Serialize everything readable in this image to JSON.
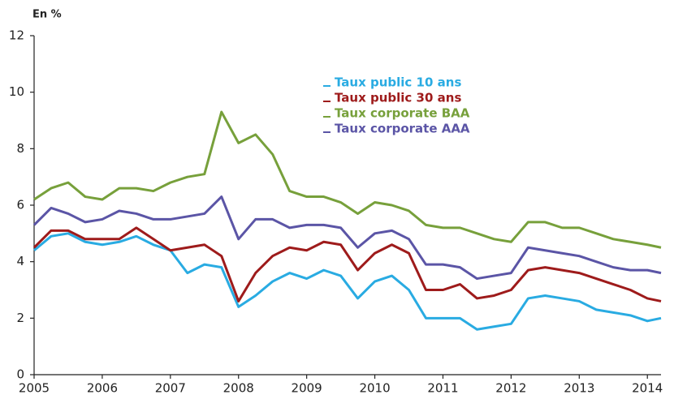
{
  "chart_data": {
    "type": "line",
    "y_label": "En %",
    "x": [
      2005,
      2005.25,
      2005.5,
      2005.75,
      2006,
      2006.25,
      2006.5,
      2006.75,
      2007,
      2007.25,
      2007.5,
      2007.75,
      2008,
      2008.25,
      2008.5,
      2008.75,
      2009,
      2009.25,
      2009.5,
      2009.75,
      2010,
      2010.25,
      2010.5,
      2010.75,
      2011,
      2011.25,
      2011.5,
      2011.75,
      2012,
      2012.25,
      2012.5,
      2012.75,
      2013,
      2013.25,
      2013.5,
      2013.75,
      2014,
      2014.2
    ],
    "series": [
      {
        "name": "Taux public 10 ans",
        "color": "#29abe2",
        "values": [
          4.4,
          4.9,
          5.0,
          4.7,
          4.6,
          4.7,
          4.9,
          4.6,
          4.4,
          3.6,
          3.9,
          3.8,
          2.4,
          2.8,
          3.3,
          3.6,
          3.4,
          3.7,
          3.5,
          2.7,
          3.3,
          3.5,
          3.0,
          2.0,
          2.0,
          2.0,
          1.6,
          1.7,
          1.8,
          2.7,
          2.8,
          2.7,
          2.6,
          2.3,
          2.2,
          2.1,
          1.9,
          2.0
        ]
      },
      {
        "name": "Taux public 30 ans",
        "color": "#9e1b1b",
        "values": [
          4.5,
          5.1,
          5.1,
          4.8,
          4.8,
          4.8,
          5.2,
          4.8,
          4.4,
          4.5,
          4.6,
          4.2,
          2.6,
          3.6,
          4.2,
          4.5,
          4.4,
          4.7,
          4.6,
          3.7,
          4.3,
          4.6,
          4.3,
          3.0,
          3.0,
          3.2,
          2.7,
          2.8,
          3.0,
          3.7,
          3.8,
          3.7,
          3.6,
          3.4,
          3.2,
          3.0,
          2.7,
          2.6
        ]
      },
      {
        "name": "Taux corporate BAA",
        "color": "#77a03b",
        "values": [
          6.2,
          6.6,
          6.8,
          6.3,
          6.2,
          6.6,
          6.6,
          6.5,
          6.8,
          7.0,
          7.1,
          9.3,
          8.2,
          8.5,
          7.8,
          6.5,
          6.3,
          6.3,
          6.1,
          5.7,
          6.1,
          6.0,
          5.8,
          5.3,
          5.2,
          5.2,
          5.0,
          4.8,
          4.7,
          5.4,
          5.4,
          5.2,
          5.2,
          5.0,
          4.8,
          4.7,
          4.6,
          4.5
        ]
      },
      {
        "name": "Taux corporate AAA",
        "color": "#5b55a6",
        "values": [
          5.3,
          5.9,
          5.7,
          5.4,
          5.5,
          5.8,
          5.7,
          5.5,
          5.5,
          5.6,
          5.7,
          6.3,
          4.8,
          5.5,
          5.5,
          5.2,
          5.3,
          5.3,
          5.2,
          4.5,
          5.0,
          5.1,
          4.8,
          3.9,
          3.9,
          3.8,
          3.4,
          3.5,
          3.6,
          4.5,
          4.4,
          4.3,
          4.2,
          4.0,
          3.8,
          3.7,
          3.7,
          3.6
        ]
      }
    ],
    "xlim": [
      2005,
      2014.2
    ],
    "xticks": [
      2005,
      2006,
      2007,
      2008,
      2009,
      2010,
      2011,
      2012,
      2013,
      2014
    ],
    "ylim": [
      0,
      12
    ],
    "yticks": [
      0,
      2,
      4,
      6,
      8,
      10,
      12
    ],
    "grid": false
  }
}
